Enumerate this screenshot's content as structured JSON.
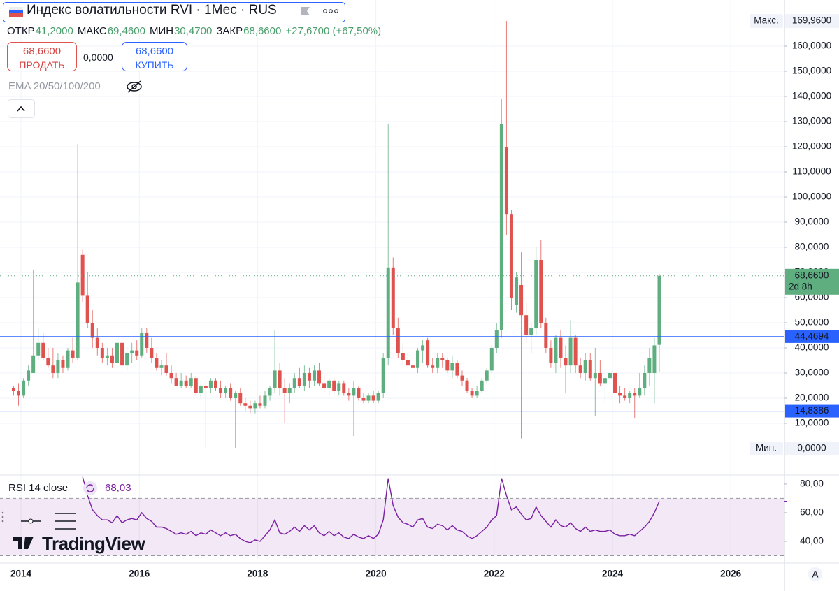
{
  "header": {
    "title": "Индекс волатильности RVI · 1Мес · RUS",
    "ohlc": [
      {
        "label": "ОТКР",
        "value": "41,2000"
      },
      {
        "label": "МАКС",
        "value": "69,4600"
      },
      {
        "label": "МИН",
        "value": "30,4700"
      },
      {
        "label": "ЗАКР",
        "value": "68,6600"
      }
    ],
    "change": "+27,6700 (+67,50%)",
    "sell_price": "68,6600",
    "sell_label": "ПРОДАТЬ",
    "spread": "0,0000",
    "buy_price": "68,6600",
    "buy_label": "КУПИТЬ",
    "indicator": "EMA 20/50/100/200",
    "watermark": "TradingView",
    "auto_scale": "A"
  },
  "chart_data": {
    "type": "candlestick",
    "x": [
      "2013-11",
      "2013-12",
      "2014-01",
      "2014-02",
      "2014-03",
      "2014-04",
      "2014-05",
      "2014-06",
      "2014-07",
      "2014-08",
      "2014-09",
      "2014-10",
      "2014-11",
      "2014-12",
      "2015-01",
      "2015-02",
      "2015-03",
      "2015-04",
      "2015-05",
      "2015-06",
      "2015-07",
      "2015-08",
      "2015-09",
      "2015-10",
      "2015-11",
      "2015-12",
      "2016-01",
      "2016-02",
      "2016-03",
      "2016-04",
      "2016-05",
      "2016-06",
      "2016-07",
      "2016-08",
      "2016-09",
      "2016-10",
      "2016-11",
      "2016-12",
      "2017-01",
      "2017-02",
      "2017-03",
      "2017-04",
      "2017-05",
      "2017-06",
      "2017-07",
      "2017-08",
      "2017-09",
      "2017-10",
      "2017-11",
      "2017-12",
      "2018-01",
      "2018-02",
      "2018-03",
      "2018-04",
      "2018-05",
      "2018-06",
      "2018-07",
      "2018-08",
      "2018-09",
      "2018-10",
      "2018-11",
      "2018-12",
      "2019-01",
      "2019-02",
      "2019-03",
      "2019-04",
      "2019-05",
      "2019-06",
      "2019-07",
      "2019-08",
      "2019-09",
      "2019-10",
      "2019-11",
      "2019-12",
      "2020-01",
      "2020-02",
      "2020-03",
      "2020-04",
      "2020-05",
      "2020-06",
      "2020-07",
      "2020-08",
      "2020-09",
      "2020-10",
      "2020-11",
      "2020-12",
      "2021-01",
      "2021-02",
      "2021-03",
      "2021-04",
      "2021-05",
      "2021-06",
      "2021-07",
      "2021-08",
      "2021-09",
      "2021-10",
      "2021-11",
      "2021-12",
      "2022-01",
      "2022-02",
      "2022-03",
      "2022-04",
      "2022-05",
      "2022-06",
      "2022-07",
      "2022-08",
      "2022-09",
      "2022-10",
      "2022-11",
      "2022-12",
      "2023-01",
      "2023-02",
      "2023-03",
      "2023-04",
      "2023-05",
      "2023-06",
      "2023-07",
      "2023-08",
      "2023-09",
      "2023-10",
      "2023-11",
      "2023-12",
      "2024-01",
      "2024-02",
      "2024-03",
      "2024-04",
      "2024-05",
      "2024-06",
      "2024-07",
      "2024-08",
      "2024-09",
      "2024-10"
    ],
    "open": [
      24,
      23,
      21,
      27,
      30,
      37,
      42,
      36,
      33,
      30,
      35,
      32,
      39,
      36,
      77,
      61,
      50,
      44,
      40,
      36,
      37,
      34,
      42,
      33,
      38,
      39,
      37,
      46,
      40,
      36,
      32,
      33,
      30,
      28,
      25,
      27,
      25,
      28,
      22,
      25,
      24,
      27,
      24,
      22,
      24,
      20,
      22,
      18,
      17,
      16,
      18,
      17,
      21,
      24,
      31,
      24,
      22,
      24,
      28,
      25,
      30,
      27,
      31,
      26,
      24,
      27,
      23,
      26,
      22,
      21,
      24,
      20,
      19,
      21,
      19,
      22,
      36,
      72,
      48,
      38,
      35,
      33,
      32,
      39,
      43,
      33,
      32,
      36,
      35,
      31,
      34,
      29,
      27,
      23,
      21,
      23,
      27,
      31,
      40,
      47,
      120,
      93,
      57,
      65,
      53,
      45,
      48,
      75,
      50,
      40,
      34,
      44,
      36,
      33,
      44,
      33,
      30,
      35,
      28,
      30,
      26,
      28,
      30,
      22,
      21,
      20,
      22,
      21,
      24,
      30,
      30,
      41.2
    ],
    "high": [
      25,
      26,
      28,
      33,
      71,
      48,
      46,
      40,
      40,
      38,
      37,
      40,
      44,
      121,
      79,
      70,
      55,
      48,
      42,
      40,
      40,
      45,
      44,
      40,
      42,
      43,
      48,
      48,
      44,
      38,
      35,
      38,
      33,
      30,
      30,
      29,
      30,
      29,
      26,
      27,
      28,
      28,
      27,
      25,
      26,
      23,
      24,
      20,
      19,
      19,
      21,
      23,
      25,
      47,
      34,
      28,
      26,
      30,
      32,
      33,
      32,
      33,
      34,
      29,
      28,
      28,
      27,
      27,
      24,
      27,
      25,
      22,
      22,
      23,
      23,
      38,
      129,
      76,
      52,
      42,
      38,
      36,
      40,
      43,
      44,
      36,
      38,
      38,
      36,
      37,
      35,
      31,
      28,
      24,
      25,
      28,
      32,
      41,
      50,
      139,
      169.96,
      95,
      70,
      78,
      58,
      50,
      80,
      83,
      52,
      43,
      45,
      47,
      41,
      51,
      45,
      36,
      38,
      38,
      40,
      35,
      30,
      32,
      49,
      25,
      24,
      23,
      24,
      30,
      33,
      40,
      44,
      69.46
    ],
    "low": [
      21,
      17,
      20,
      25,
      30,
      35,
      35,
      32,
      28,
      28,
      30,
      31,
      34,
      35,
      58,
      48,
      40,
      37,
      34,
      33,
      32,
      32,
      32,
      31,
      34,
      35,
      36,
      38,
      34,
      31,
      29,
      29,
      26,
      25,
      24,
      24,
      24,
      21,
      20,
      0,
      22,
      23,
      20,
      20,
      19,
      0,
      17,
      15,
      14,
      14,
      16,
      16,
      19,
      22,
      21,
      10,
      18,
      22,
      24,
      23,
      24,
      25,
      25,
      22,
      21,
      22,
      21,
      21,
      19,
      5,
      19,
      18,
      18,
      18,
      18,
      20,
      33,
      45,
      36,
      33,
      32,
      28,
      30,
      34,
      32,
      30,
      30,
      32,
      30,
      28,
      28,
      25,
      22,
      20,
      20,
      22,
      26,
      30,
      38,
      44,
      85,
      55,
      54,
      4,
      42,
      38,
      45,
      48,
      38,
      32,
      30,
      32,
      22,
      30,
      30,
      28,
      27,
      27,
      13,
      25,
      18,
      25,
      10,
      18,
      19,
      18,
      12,
      20,
      21,
      25,
      18,
      30.47
    ],
    "close": [
      23,
      21,
      27,
      31,
      37,
      42,
      36,
      33,
      30,
      35,
      32,
      39,
      36,
      66,
      61,
      50,
      44,
      40,
      36,
      37,
      34,
      42,
      33,
      38,
      39,
      37,
      46,
      40,
      36,
      32,
      33,
      30,
      28,
      25,
      27,
      25,
      28,
      22,
      25,
      24,
      27,
      24,
      22,
      24,
      20,
      22,
      18,
      17,
      16,
      18,
      17,
      21,
      24,
      31,
      24,
      22,
      24,
      28,
      25,
      30,
      27,
      31,
      26,
      24,
      27,
      23,
      26,
      22,
      21,
      24,
      20,
      19,
      21,
      19,
      22,
      36,
      72,
      48,
      38,
      35,
      33,
      32,
      39,
      41,
      33,
      32,
      36,
      35,
      31,
      34,
      29,
      27,
      23,
      21,
      23,
      27,
      31,
      40,
      47,
      129,
      93,
      60,
      68,
      53,
      45,
      48,
      75,
      50,
      40,
      34,
      44,
      36,
      33,
      44,
      33,
      30,
      35,
      28,
      30,
      26,
      28,
      30,
      22,
      21,
      20,
      22,
      21,
      24,
      30,
      36,
      41,
      68.66
    ],
    "up_color": "#5fae80",
    "down_color": "#e0524e",
    "xlim": [
      2013.645,
      2026.908
    ],
    "xticks": [
      2014,
      2016,
      2018,
      2020,
      2022,
      2024,
      2026
    ],
    "ylim": [
      -10.56,
      178.33
    ],
    "yticks": [
      {
        "value": 10,
        "label": "10,0000"
      },
      {
        "value": 20,
        "label": "20,0000"
      },
      {
        "value": 30,
        "label": "30,0000"
      },
      {
        "value": 40,
        "label": "40,0000"
      },
      {
        "value": 50,
        "label": "50,0000"
      },
      {
        "value": 60,
        "label": "60,0000"
      },
      {
        "value": 70,
        "label": "70,0000"
      },
      {
        "value": 80,
        "label": "80,0000"
      },
      {
        "value": 90,
        "label": "90,0000"
      },
      {
        "value": 100,
        "label": "100,0000"
      },
      {
        "value": 110,
        "label": "110,0000"
      },
      {
        "value": 120,
        "label": "120,0000"
      },
      {
        "value": 130,
        "label": "130,0000"
      },
      {
        "value": 140,
        "label": "140,0000"
      },
      {
        "value": 150,
        "label": "150,0000"
      },
      {
        "value": 160,
        "label": "160,0000"
      }
    ],
    "grid": true,
    "hlines": [
      {
        "value": 44.4694,
        "label": "44,4694",
        "color": "#2962ff"
      },
      {
        "value": 14.8386,
        "label": "14,8386",
        "color": "#2962ff"
      }
    ],
    "last": {
      "value": 68.66,
      "label": "68,6600",
      "countdown": "2d 8h"
    },
    "max": {
      "name": "Макс.",
      "value": 169.96,
      "label": "169,9600"
    },
    "min": {
      "name": "Мин.",
      "value": 0,
      "label": "0,0000"
    },
    "indicator": {
      "name": "RSI 14 close",
      "color": "#7b1fa2",
      "last_label": "68,03",
      "last": 68.03,
      "values": [
        null,
        null,
        null,
        null,
        null,
        null,
        null,
        null,
        null,
        null,
        null,
        null,
        null,
        null,
        85,
        72,
        62,
        58,
        55,
        55,
        53,
        58,
        53,
        55,
        56,
        55,
        60,
        56,
        54,
        50,
        50,
        49,
        47,
        45,
        46,
        45,
        47,
        44,
        46,
        45,
        48,
        46,
        44,
        46,
        44,
        45,
        42,
        40,
        39,
        41,
        40,
        44,
        48,
        55,
        46,
        45,
        47,
        50,
        47,
        51,
        48,
        51,
        46,
        44,
        47,
        44,
        46,
        43,
        42,
        45,
        43,
        42,
        44,
        42,
        45,
        55,
        84,
        65,
        57,
        53,
        52,
        50,
        55,
        56,
        50,
        49,
        52,
        51,
        48,
        51,
        48,
        47,
        44,
        42,
        44,
        47,
        50,
        55,
        58,
        84,
        72,
        62,
        64,
        59,
        55,
        56,
        64,
        58,
        54,
        50,
        55,
        51,
        50,
        53,
        49,
        47,
        50,
        47,
        48,
        47,
        47,
        48,
        45,
        44,
        44,
        45,
        44,
        47,
        50,
        54,
        60,
        68.03
      ],
      "ylim": [
        27.8,
        86.3
      ],
      "yticks": [
        {
          "value": 40,
          "label": "40,00"
        },
        {
          "value": 60,
          "label": "60,00"
        },
        {
          "value": 80,
          "label": "80,00"
        }
      ],
      "band": [
        30,
        70
      ]
    }
  }
}
